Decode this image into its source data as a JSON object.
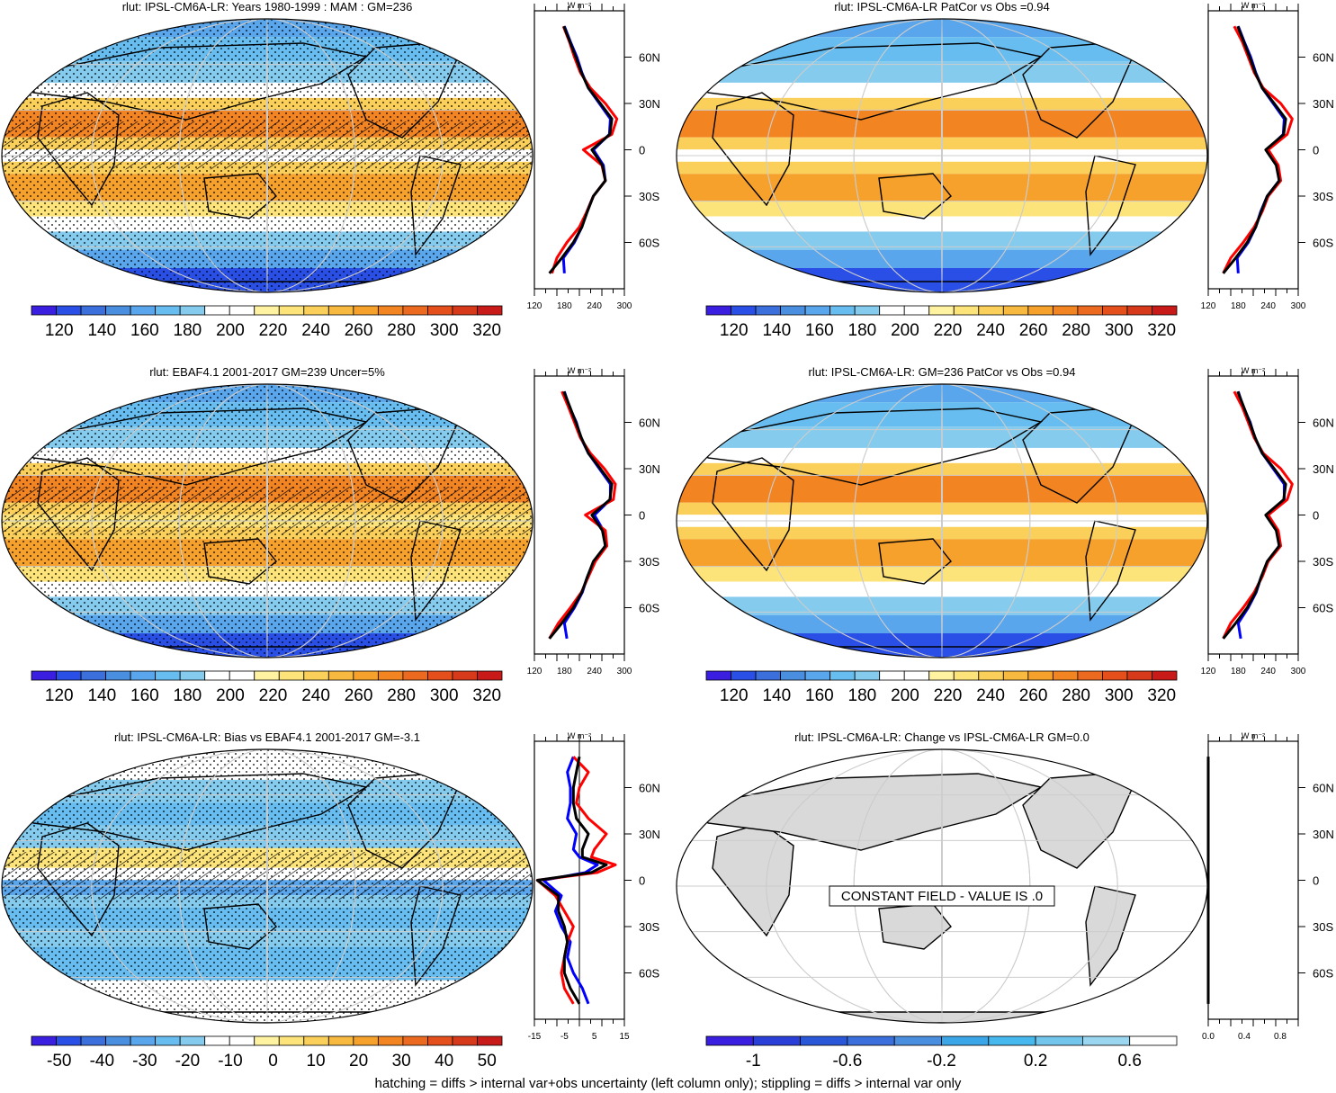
{
  "footer": "hatching = diffs > internal var+obs uncertainty (left column only); stippling = diffs > internal var only",
  "palette_abs": [
    "#3b1fe0",
    "#2a4fe6",
    "#3a6fdc",
    "#4a8ee0",
    "#5aa6ec",
    "#67bdf0",
    "#84cbee",
    "#ffffff",
    "#ffffff",
    "#fff2a0",
    "#fde47a",
    "#fbd05a",
    "#f8b940",
    "#f5a12c",
    "#f28422",
    "#ec6a1f",
    "#e44f1c",
    "#d63a1a",
    "#c81a18"
  ],
  "palette_bias": [
    "#3b1fe0",
    "#2a4fe6",
    "#3a6fdc",
    "#4a8ee0",
    "#5aa6ec",
    "#67bdf0",
    "#84cbee",
    "#ffffff",
    "#ffffff",
    "#fff2a0",
    "#fde47a",
    "#fbd05a",
    "#f8b940",
    "#f5a12c",
    "#f28422",
    "#ec6a1f",
    "#e44f1c",
    "#d63a1a",
    "#c81a18"
  ],
  "palette_change": [
    "#3b1fe0",
    "#2a3fd8",
    "#2a56d8",
    "#3a6fdc",
    "#4a8ee0",
    "#3aa6e8",
    "#46b8ee",
    "#72c6ec",
    "#9ad6f0",
    "#ffffff"
  ],
  "panels": [
    {
      "title": "rlut: IPSL-CM6A-LR: Years 1980-1999 : MAM : GM=236",
      "colorbar_labels": [
        "120",
        "140",
        "160",
        "180",
        "200",
        "220",
        "240",
        "260",
        "280",
        "300",
        "320"
      ],
      "profile_xticks": [
        "120",
        "180",
        "240",
        "300"
      ],
      "lat_labels": [
        "60N",
        "30N",
        "0",
        "30S",
        "60S"
      ],
      "units": "W m⁻²"
    },
    {
      "title": "rlut: IPSL-CM6A-LR PatCor vs Obs =0.94",
      "colorbar_labels": [
        "120",
        "140",
        "160",
        "180",
        "200",
        "220",
        "240",
        "260",
        "280",
        "300",
        "320"
      ],
      "profile_xticks": [
        "120",
        "180",
        "240",
        "300"
      ],
      "lat_labels": [
        "60N",
        "30N",
        "0",
        "30S",
        "60S"
      ],
      "units": "W m⁻²"
    },
    {
      "title": "rlut: EBAF4.1 2001-2017 GM=239 Uncer=5%",
      "colorbar_labels": [
        "120",
        "140",
        "160",
        "180",
        "200",
        "220",
        "240",
        "260",
        "280",
        "300",
        "320"
      ],
      "profile_xticks": [
        "120",
        "180",
        "240",
        "300"
      ],
      "lat_labels": [
        "60N",
        "30N",
        "0",
        "30S",
        "60S"
      ],
      "units": "W m⁻²"
    },
    {
      "title": "rlut: IPSL-CM6A-LR: GM=236 PatCor vs Obs =0.94",
      "colorbar_labels": [
        "120",
        "140",
        "160",
        "180",
        "200",
        "220",
        "240",
        "260",
        "280",
        "300",
        "320"
      ],
      "profile_xticks": [
        "120",
        "180",
        "240",
        "300"
      ],
      "lat_labels": [
        "60N",
        "30N",
        "0",
        "30S",
        "60S"
      ],
      "units": "W m⁻²"
    },
    {
      "title": "rlut: IPSL-CM6A-LR: Bias vs EBAF4.1 2001-2017 GM=-3.1",
      "colorbar_labels": [
        "-50",
        "-40",
        "-30",
        "-20",
        "-10",
        "0",
        "10",
        "20",
        "30",
        "40",
        "50"
      ],
      "profile_xticks": [
        "-15",
        "-5",
        "5",
        "15"
      ],
      "lat_labels": [
        "60N",
        "30N",
        "0",
        "30S",
        "60S"
      ],
      "units": "W m⁻²"
    },
    {
      "title": "rlut: IPSL-CM6A-LR: Change vs IPSL-CM6A-LR GM=0.0",
      "colorbar_labels": [
        "-1",
        "-0.6",
        "-0.2",
        "0.2",
        "0.6"
      ],
      "profile_xticks": [
        "0.0",
        "0.4",
        "0.8"
      ],
      "lat_labels": [
        "60N",
        "30N",
        "0",
        "30S",
        "60S"
      ],
      "units": "W m⁻²",
      "constant_note": "CONSTANT FIELD - VALUE IS .0"
    }
  ],
  "chart_data": [
    {
      "type": "line",
      "title": "rlut: IPSL-CM6A-LR: Years 1980-1999 : MAM : GM=236",
      "xlabel": "W m-2",
      "xlim": [
        120,
        300
      ],
      "ylim": [
        -90,
        90
      ],
      "y": [
        -80,
        -70,
        -60,
        -50,
        -40,
        -30,
        -20,
        -10,
        0,
        10,
        20,
        30,
        40,
        50,
        60,
        70,
        80
      ],
      "series": [
        {
          "color": "#0000ff",
          "values": [
            180,
            178,
            200,
            215,
            225,
            238,
            262,
            258,
            238,
            270,
            272,
            250,
            228,
            215,
            205,
            192,
            180
          ]
        },
        {
          "color": "#ff0000",
          "values": [
            155,
            165,
            185,
            210,
            225,
            238,
            262,
            255,
            218,
            275,
            285,
            262,
            232,
            212,
            200,
            190,
            178
          ]
        },
        {
          "color": "#000000",
          "values": [
            150,
            175,
            198,
            215,
            226,
            238,
            262,
            256,
            235,
            271,
            275,
            252,
            228,
            214,
            203,
            191,
            179
          ]
        }
      ]
    },
    {
      "type": "line",
      "title": "rlut: IPSL-CM6A-LR PatCor vs Obs =0.94",
      "xlabel": "W m-2",
      "xlim": [
        120,
        300
      ],
      "ylim": [
        -90,
        90
      ],
      "y": [
        -80,
        -70,
        -60,
        -50,
        -40,
        -30,
        -20,
        -10,
        0,
        10,
        20,
        30,
        40,
        50,
        60,
        70,
        80
      ],
      "series": [
        {
          "color": "#0000ff",
          "values": [
            180,
            178,
            200,
            215,
            225,
            238,
            262,
            258,
            238,
            270,
            272,
            250,
            228,
            215,
            205,
            192,
            180
          ]
        },
        {
          "color": "#ff0000",
          "values": [
            150,
            165,
            190,
            212,
            228,
            240,
            265,
            260,
            240,
            278,
            288,
            265,
            230,
            212,
            200,
            188,
            172
          ]
        },
        {
          "color": "#000000",
          "values": [
            150,
            175,
            198,
            215,
            226,
            238,
            262,
            256,
            235,
            271,
            275,
            252,
            228,
            214,
            203,
            191,
            179
          ]
        }
      ]
    },
    {
      "type": "line",
      "title": "rlut: EBAF4.1 2001-2017 GM=239 Uncer=5%",
      "xlabel": "W m-2",
      "xlim": [
        120,
        300
      ],
      "ylim": [
        -90,
        90
      ],
      "y": [
        -80,
        -70,
        -60,
        -50,
        -40,
        -30,
        -20,
        -10,
        0,
        10,
        20,
        30,
        40,
        50,
        60,
        70,
        80
      ],
      "series": [
        {
          "color": "#0000ff",
          "values": [
            185,
            180,
            200,
            216,
            226,
            240,
            262,
            258,
            240,
            272,
            272,
            250,
            228,
            213,
            204,
            190,
            180
          ]
        },
        {
          "color": "#ff0000",
          "values": [
            150,
            168,
            192,
            214,
            228,
            242,
            265,
            262,
            222,
            278,
            282,
            260,
            232,
            212,
            200,
            188,
            175
          ]
        },
        {
          "color": "#000000",
          "values": [
            150,
            175,
            198,
            215,
            226,
            238,
            262,
            256,
            235,
            271,
            275,
            252,
            228,
            214,
            203,
            191,
            179
          ]
        }
      ]
    },
    {
      "type": "line",
      "title": "rlut: IPSL-CM6A-LR: GM=236 PatCor vs Obs =0.94",
      "xlabel": "W m-2",
      "xlim": [
        120,
        300
      ],
      "ylim": [
        -90,
        90
      ],
      "y": [
        -80,
        -70,
        -60,
        -50,
        -40,
        -30,
        -20,
        -10,
        0,
        10,
        20,
        30,
        40,
        50,
        60,
        70,
        80
      ],
      "series": [
        {
          "color": "#0000ff",
          "values": [
            185,
            180,
            200,
            216,
            226,
            240,
            262,
            258,
            240,
            272,
            272,
            250,
            228,
            213,
            204,
            190,
            180
          ]
        },
        {
          "color": "#ff0000",
          "values": [
            150,
            165,
            190,
            212,
            228,
            240,
            265,
            260,
            240,
            278,
            288,
            265,
            230,
            212,
            200,
            188,
            172
          ]
        },
        {
          "color": "#000000",
          "values": [
            150,
            175,
            198,
            215,
            226,
            238,
            262,
            256,
            235,
            271,
            275,
            252,
            228,
            214,
            203,
            191,
            179
          ]
        }
      ]
    },
    {
      "type": "line",
      "title": "rlut: IPSL-CM6A-LR: Bias vs EBAF4.1 2001-2017 GM=-3.1",
      "xlabel": "W m-2",
      "xlim": [
        -15,
        15
      ],
      "ylim": [
        -90,
        90
      ],
      "y": [
        -80,
        -70,
        -60,
        -50,
        -40,
        -30,
        -20,
        -10,
        0,
        5,
        10,
        15,
        20,
        30,
        40,
        50,
        60,
        70,
        80
      ],
      "series": [
        {
          "color": "#0000ff",
          "values": [
            3,
            1,
            -2,
            -4,
            -3,
            -6,
            -8,
            -6,
            -12,
            2,
            6,
            0,
            -2,
            -1,
            -4,
            -3,
            -3,
            -4,
            -2
          ]
        },
        {
          "color": "#ff0000",
          "values": [
            -2,
            -5,
            -6,
            -5,
            -4,
            -2,
            -5,
            -8,
            -14,
            6,
            12,
            4,
            5,
            9,
            3,
            -1,
            0,
            3,
            -2
          ]
        },
        {
          "color": "#000000",
          "values": [
            0,
            -3,
            -5,
            -5,
            -4,
            -5,
            -7,
            -7,
            -14,
            4,
            9,
            1,
            1,
            3,
            -1,
            -2,
            -2,
            -1,
            0
          ]
        }
      ]
    },
    {
      "type": "line",
      "title": "rlut: IPSL-CM6A-LR: Change vs IPSL-CM6A-LR GM=0.0",
      "xlabel": "W m-2",
      "xlim": [
        0,
        1
      ],
      "ylim": [
        -90,
        90
      ],
      "y": [
        -80,
        -60,
        -30,
        0,
        30,
        60,
        80
      ],
      "series": [
        {
          "color": "#000000",
          "values": [
            0,
            0,
            0,
            0,
            0,
            0,
            0
          ]
        }
      ]
    }
  ]
}
